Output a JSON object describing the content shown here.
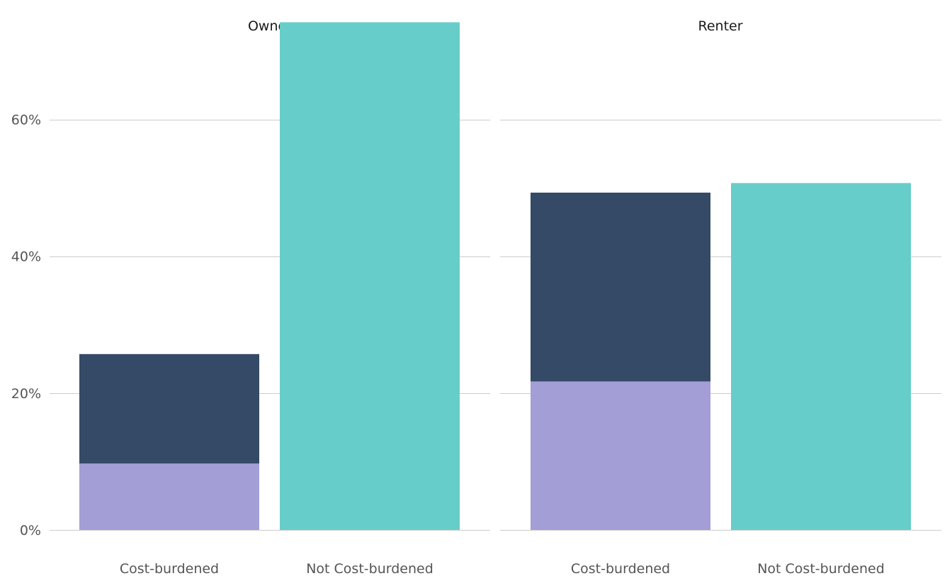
{
  "chart_data": {
    "type": "bar",
    "stacked": true,
    "y_ticks": [
      "0%",
      "20%",
      "40%",
      "60%"
    ],
    "ylim": [
      0,
      0.7
    ],
    "grid": true,
    "facets": [
      {
        "title": "Owner",
        "categories": [
          "Cost-burdened",
          "Not Cost-burdened"
        ],
        "series": [
          {
            "color": "#a39ed6",
            "values": [
              0.097,
              0
            ]
          },
          {
            "color": "#344a66",
            "values": [
              0.16,
              0
            ]
          },
          {
            "color": "#67cdca",
            "values": [
              0,
              0.742
            ]
          }
        ]
      },
      {
        "title": "Renter",
        "categories": [
          "Cost-burdened",
          "Not Cost-burdened"
        ],
        "series": [
          {
            "color": "#a39ed6",
            "values": [
              0.217,
              0
            ]
          },
          {
            "color": "#344a66",
            "values": [
              0.276,
              0
            ]
          },
          {
            "color": "#67cdca",
            "values": [
              0,
              0.507
            ]
          }
        ]
      }
    ]
  }
}
